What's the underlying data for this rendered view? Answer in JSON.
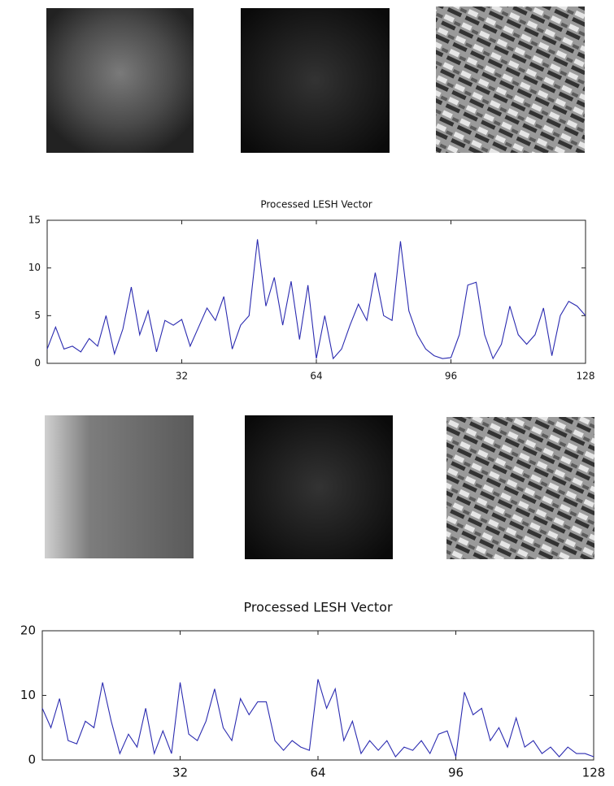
{
  "chart_data": [
    {
      "type": "line",
      "title": "Processed LESH Vector",
      "x": [
        0,
        2,
        4,
        6,
        8,
        10,
        12,
        14,
        16,
        18,
        20,
        22,
        24,
        26,
        28,
        30,
        32,
        34,
        36,
        38,
        40,
        42,
        44,
        46,
        48,
        50,
        52,
        54,
        56,
        58,
        60,
        62,
        64,
        66,
        68,
        70,
        72,
        74,
        76,
        78,
        80,
        82,
        84,
        86,
        88,
        90,
        92,
        94,
        96,
        98,
        100,
        102,
        104,
        106,
        108,
        110,
        112,
        114,
        116,
        118,
        120,
        122,
        124,
        126,
        128
      ],
      "series": [
        {
          "color": "#2b2bb0",
          "values": [
            1.5,
            3.8,
            1.5,
            1.8,
            1.2,
            2.6,
            1.8,
            5,
            1,
            3.6,
            8,
            3,
            5.5,
            1.2,
            4.5,
            4,
            4.6,
            1.8,
            3.8,
            5.8,
            4.5,
            7,
            1.5,
            4,
            5,
            13,
            6,
            9,
            4,
            8.6,
            2.5,
            8.2,
            0.5,
            5,
            0.5,
            1.5,
            4,
            6.2,
            4.5,
            9.5,
            5,
            4.5,
            12.8,
            5.5,
            3,
            1.5,
            0.8,
            0.5,
            0.6,
            3,
            8.2,
            8.5,
            3,
            0.5,
            2,
            6,
            3,
            2,
            3,
            5.8,
            0.8,
            5,
            6.5,
            6,
            5
          ]
        }
      ],
      "xlim": [
        0,
        128
      ],
      "xticks": [
        32,
        64,
        96,
        128
      ],
      "ylim": [
        0,
        15
      ],
      "yticks": [
        0,
        5,
        10,
        15
      ]
    },
    {
      "type": "line",
      "title": "Processed LESH Vector",
      "x": [
        0,
        2,
        4,
        6,
        8,
        10,
        12,
        14,
        16,
        18,
        20,
        22,
        24,
        26,
        28,
        30,
        32,
        34,
        36,
        38,
        40,
        42,
        44,
        46,
        48,
        50,
        52,
        54,
        56,
        58,
        60,
        62,
        64,
        66,
        68,
        70,
        72,
        74,
        76,
        78,
        80,
        82,
        84,
        86,
        88,
        90,
        92,
        94,
        96,
        98,
        100,
        102,
        104,
        106,
        108,
        110,
        112,
        114,
        116,
        118,
        120,
        122,
        124,
        126,
        128
      ],
      "series": [
        {
          "color": "#2b2bb0",
          "values": [
            8,
            5,
            9.5,
            3,
            2.5,
            6,
            5,
            12,
            6,
            1,
            4,
            2,
            8,
            1,
            4.5,
            1,
            12,
            4,
            3,
            6,
            11,
            5,
            3,
            9.5,
            7,
            9,
            9,
            3,
            1.5,
            3,
            2,
            1.5,
            12.5,
            8,
            11,
            3,
            6,
            1,
            3,
            1.5,
            3,
            0.5,
            2,
            1.5,
            3,
            1,
            4,
            4.5,
            0.5,
            10.5,
            7,
            8,
            3,
            5,
            2,
            6.5,
            2,
            3,
            1,
            2,
            0.5,
            2,
            1,
            1,
            0.5
          ]
        }
      ],
      "xlim": [
        0,
        128
      ],
      "xticks": [
        32,
        64,
        96,
        128
      ],
      "ylim": [
        0,
        20
      ],
      "yticks": [
        0,
        10,
        20
      ]
    }
  ]
}
